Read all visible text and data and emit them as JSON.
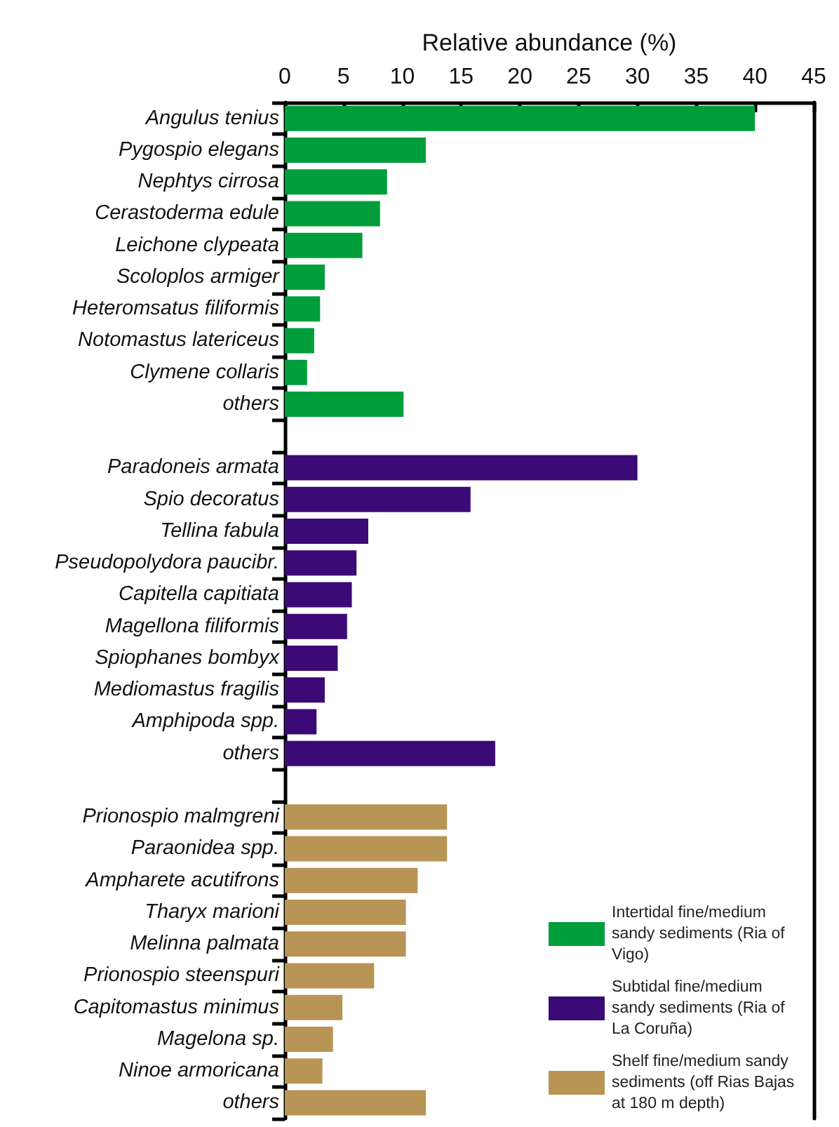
{
  "chart_data": {
    "type": "bar",
    "orientation": "horizontal",
    "xlabel": "Relative abundance (%)",
    "categories": [
      "Angulus tenius",
      "Pygospio elegans",
      "Nephtys cirrosa",
      "Cerastoderma edule",
      "Leichone clypeata",
      "Scoloplos armiger",
      "Heteromsatus filiformis",
      "Notomastus latericeus",
      "Clymene collaris",
      "others",
      null,
      "Paradoneis armata",
      "Spio decoratus",
      "Tellina fabula",
      "Pseudopolydora paucibr.",
      "Capitella capitiata",
      "Magellona filiformis",
      "Spiophanes bombyx",
      "Mediomastus fragilis",
      "Amphipoda spp.",
      "others",
      null,
      "Prionospio malmgreni",
      "Paraonidea spp.",
      "Ampharete acutifrons",
      "Tharyx marioni",
      "Melinna palmata",
      "Prionospio steenspuri",
      "Capitomastus minimus",
      "Magelona sp.",
      "Ninoe armoricana",
      "others"
    ],
    "series": [
      {
        "name": "Intertidal fine/medium sandy sediments (Ria of Vigo)",
        "color": "#009e3a",
        "values": [
          40,
          12.0,
          8.7,
          8.1,
          6.6,
          3.4,
          3.0,
          2.5,
          1.9,
          10.1,
          null,
          null,
          null,
          null,
          null,
          null,
          null,
          null,
          null,
          null,
          null,
          null,
          null,
          null,
          null,
          null,
          null,
          null,
          null,
          null,
          null,
          null
        ]
      },
      {
        "name": "Subtidal fine/medium sandy sediments (Ria of La Coruña)",
        "color": "#3b0a76",
        "values": [
          null,
          null,
          null,
          null,
          null,
          null,
          null,
          null,
          null,
          null,
          null,
          30,
          15.8,
          7.1,
          6.1,
          5.7,
          5.3,
          4.5,
          3.4,
          2.7,
          17.9,
          null,
          null,
          null,
          null,
          null,
          null,
          null,
          null,
          null,
          null,
          null
        ]
      },
      {
        "name": "Shelf fine/medium sandy sediments (off Rias Bajas at 180 m depth)",
        "color": "#b89554",
        "values": [
          null,
          null,
          null,
          null,
          null,
          null,
          null,
          null,
          null,
          null,
          null,
          null,
          null,
          null,
          null,
          null,
          null,
          null,
          null,
          null,
          null,
          null,
          13.8,
          13.8,
          11.3,
          10.3,
          10.3,
          7.6,
          4.9,
          4.1,
          3.2,
          12.0
        ]
      }
    ],
    "xlim": [
      0,
      45
    ],
    "xticks": [
      0,
      5,
      10,
      15,
      20,
      25,
      30,
      35,
      40,
      45
    ],
    "grid": false,
    "legend": "bottom right"
  }
}
